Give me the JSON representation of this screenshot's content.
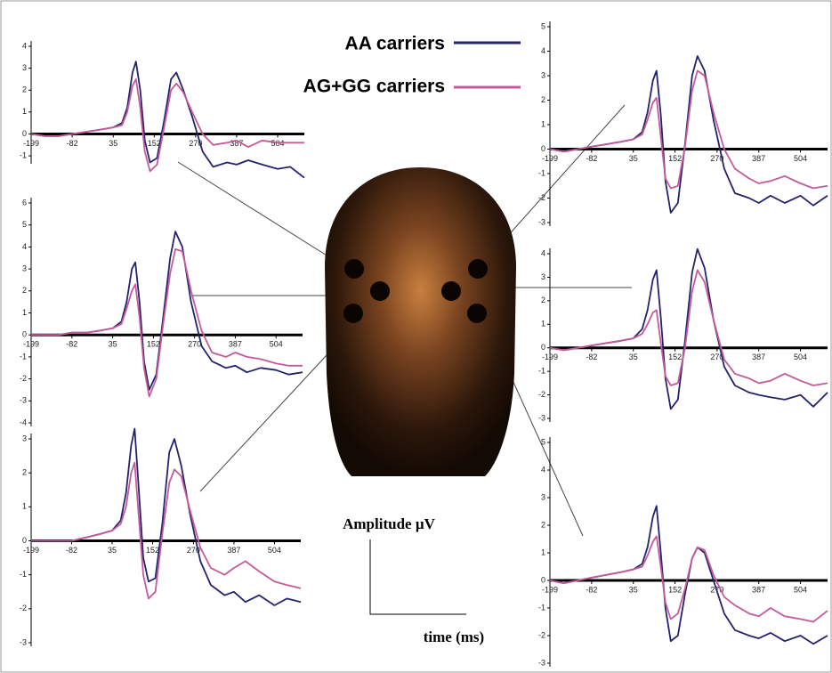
{
  "figure": {
    "amplitude_label": "Amplitude µV",
    "time_label": "time (ms)"
  },
  "chart_data": [
    {
      "type": "line",
      "xlim": [
        -199,
        580
      ],
      "ylim": [
        -1.2,
        4
      ],
      "xticks": [
        -199,
        -82,
        35,
        152,
        270,
        387,
        504
      ],
      "yticks": [
        -1,
        0,
        1,
        2,
        3,
        4
      ],
      "x": [
        -199,
        -160,
        -120,
        -82,
        -40,
        0,
        35,
        60,
        75,
        90,
        100,
        112,
        125,
        140,
        160,
        180,
        200,
        215,
        235,
        260,
        290,
        320,
        360,
        387,
        420,
        460,
        504,
        540,
        580
      ],
      "series": [
        {
          "name": "AA carriers",
          "color": "#23236e",
          "values": [
            0,
            -0.1,
            -0.1,
            0,
            0.1,
            0.2,
            0.3,
            0.5,
            1.2,
            2.8,
            3.3,
            2.0,
            -0.3,
            -1.3,
            -1.1,
            0.6,
            2.5,
            2.8,
            2.0,
            0.8,
            -0.8,
            -1.5,
            -1.3,
            -1.4,
            -1.2,
            -1.4,
            -1.6,
            -1.5,
            -2.0
          ]
        },
        {
          "name": "AG+GG carriers",
          "color": "#c45a9a",
          "values": [
            0,
            -0.1,
            -0.1,
            0,
            0.1,
            0.2,
            0.3,
            0.4,
            1.0,
            2.2,
            2.5,
            1.2,
            -0.8,
            -1.7,
            -1.4,
            0.3,
            2.0,
            2.3,
            1.9,
            1.0,
            0,
            -0.5,
            -0.4,
            -0.3,
            -0.6,
            -0.3,
            -0.4,
            -0.4,
            -0.4
          ]
        }
      ]
    },
    {
      "type": "line",
      "xlim": [
        -199,
        580
      ],
      "ylim": [
        -4,
        6
      ],
      "xticks": [
        -199,
        -82,
        35,
        152,
        270,
        387,
        504
      ],
      "yticks": [
        -4,
        -3,
        -2,
        -1,
        0,
        1,
        2,
        3,
        4,
        5,
        6
      ],
      "x": [
        -199,
        -160,
        -120,
        -82,
        -40,
        0,
        35,
        60,
        75,
        90,
        100,
        112,
        125,
        140,
        160,
        180,
        200,
        215,
        235,
        260,
        290,
        320,
        360,
        387,
        420,
        460,
        504,
        540,
        580
      ],
      "series": [
        {
          "name": "AA carriers",
          "color": "#23236e",
          "values": [
            0,
            0,
            0,
            0.1,
            0.1,
            0.2,
            0.3,
            0.6,
            1.5,
            3.0,
            3.3,
            1.5,
            -1.2,
            -2.5,
            -1.8,
            0.8,
            3.5,
            4.7,
            4.0,
            1.5,
            -0.5,
            -1.2,
            -1.5,
            -1.4,
            -1.7,
            -1.5,
            -1.6,
            -1.8,
            -1.7
          ]
        },
        {
          "name": "AG+GG carriers",
          "color": "#c45a9a",
          "values": [
            0,
            0,
            0,
            0.1,
            0.1,
            0.2,
            0.3,
            0.5,
            1.2,
            2.0,
            2.3,
            0.8,
            -1.5,
            -2.8,
            -2.0,
            0.5,
            2.8,
            3.9,
            3.8,
            2.0,
            0.2,
            -0.8,
            -1.0,
            -0.8,
            -1.0,
            -1.1,
            -1.3,
            -1.4,
            -1.4
          ]
        }
      ]
    },
    {
      "type": "line",
      "xlim": [
        -199,
        580
      ],
      "ylim": [
        -3,
        3
      ],
      "xticks": [
        -199,
        -82,
        35,
        152,
        270,
        387,
        504
      ],
      "yticks": [
        -3,
        -2,
        -1,
        0,
        1,
        2,
        3
      ],
      "x": [
        -199,
        -160,
        -120,
        -82,
        -40,
        0,
        35,
        60,
        75,
        90,
        100,
        112,
        125,
        140,
        160,
        180,
        200,
        215,
        235,
        260,
        290,
        320,
        360,
        387,
        420,
        460,
        504,
        540,
        580
      ],
      "series": [
        {
          "name": "AA carriers",
          "color": "#23236e",
          "values": [
            0,
            0,
            0,
            0,
            0.1,
            0.2,
            0.3,
            0.6,
            1.4,
            2.8,
            3.3,
            1.5,
            -0.5,
            -1.2,
            -1.1,
            0.5,
            2.6,
            3.0,
            2.2,
            0.8,
            -0.6,
            -1.3,
            -1.6,
            -1.5,
            -1.8,
            -1.6,
            -1.9,
            -1.7,
            -1.8
          ]
        },
        {
          "name": "AG+GG carriers",
          "color": "#c45a9a",
          "values": [
            0,
            0,
            0,
            0,
            0.1,
            0.2,
            0.3,
            0.5,
            1.0,
            2.0,
            2.3,
            0.7,
            -1.0,
            -1.7,
            -1.5,
            0.2,
            1.7,
            2.1,
            1.9,
            0.9,
            -0.2,
            -0.8,
            -1.0,
            -0.8,
            -0.6,
            -0.9,
            -1.2,
            -1.3,
            -1.4
          ]
        }
      ]
    },
    {
      "type": "line",
      "xlim": [
        -199,
        580
      ],
      "ylim": [
        -3,
        5
      ],
      "xticks": [
        -199,
        -82,
        35,
        152,
        270,
        387,
        504
      ],
      "yticks": [
        -3,
        -2,
        -1,
        0,
        1,
        2,
        3,
        4,
        5
      ],
      "x": [
        -199,
        -160,
        -120,
        -82,
        -40,
        0,
        35,
        60,
        75,
        90,
        100,
        112,
        125,
        140,
        160,
        180,
        200,
        215,
        235,
        260,
        290,
        320,
        360,
        387,
        420,
        460,
        504,
        540,
        580
      ],
      "series": [
        {
          "name": "AA carriers",
          "color": "#23236e",
          "values": [
            0,
            -0.1,
            0,
            0.1,
            0.2,
            0.3,
            0.4,
            0.7,
            1.5,
            2.8,
            3.2,
            1.4,
            -1.3,
            -2.6,
            -2.2,
            0.2,
            3.0,
            3.8,
            3.2,
            1.2,
            -0.8,
            -1.8,
            -2.0,
            -2.2,
            -1.9,
            -2.2,
            -1.9,
            -2.3,
            -1.9
          ]
        },
        {
          "name": "AG+GG carriers",
          "color": "#c45a9a",
          "values": [
            0,
            -0.1,
            0,
            0.1,
            0.2,
            0.3,
            0.4,
            0.6,
            1.2,
            1.9,
            2.1,
            0.5,
            -1.2,
            -1.6,
            -1.5,
            0.1,
            2.4,
            3.2,
            3.0,
            1.5,
            0,
            -0.8,
            -1.2,
            -1.4,
            -1.3,
            -1.1,
            -1.4,
            -1.6,
            -1.5
          ]
        }
      ]
    },
    {
      "type": "line",
      "xlim": [
        -199,
        580
      ],
      "ylim": [
        -3,
        4
      ],
      "xticks": [
        -199,
        -82,
        35,
        152,
        270,
        387,
        504
      ],
      "yticks": [
        -3,
        -2,
        -1,
        0,
        1,
        2,
        3,
        4
      ],
      "x": [
        -199,
        -160,
        -120,
        -82,
        -40,
        0,
        35,
        60,
        75,
        90,
        100,
        112,
        125,
        140,
        160,
        180,
        200,
        215,
        235,
        260,
        290,
        320,
        360,
        387,
        420,
        460,
        504,
        540,
        580
      ],
      "series": [
        {
          "name": "AA carriers",
          "color": "#23236e",
          "values": [
            0,
            -0.1,
            0,
            0.1,
            0.2,
            0.3,
            0.4,
            0.8,
            1.6,
            2.9,
            3.3,
            1.3,
            -1.3,
            -2.6,
            -2.2,
            0.3,
            3.2,
            4.2,
            3.4,
            1.2,
            -0.8,
            -1.6,
            -1.9,
            -2.0,
            -2.1,
            -2.2,
            -2.0,
            -2.5,
            -1.9
          ]
        },
        {
          "name": "AG+GG carriers",
          "color": "#c45a9a",
          "values": [
            0,
            -0.1,
            0,
            0.1,
            0.2,
            0.3,
            0.4,
            0.6,
            1.0,
            1.5,
            1.6,
            0.2,
            -1.2,
            -1.6,
            -1.5,
            0,
            2.4,
            3.3,
            2.8,
            1.2,
            -0.5,
            -1.1,
            -1.3,
            -1.5,
            -1.4,
            -1.1,
            -1.4,
            -1.6,
            -1.5
          ]
        }
      ]
    },
    {
      "type": "line",
      "xlim": [
        -199,
        580
      ],
      "ylim": [
        -3,
        5
      ],
      "xticks": [
        -199,
        -82,
        35,
        152,
        270,
        387,
        504
      ],
      "yticks": [
        -3,
        -2,
        -1,
        0,
        1,
        2,
        3,
        4,
        5
      ],
      "x": [
        -199,
        -160,
        -120,
        -82,
        -40,
        0,
        35,
        60,
        75,
        90,
        100,
        112,
        125,
        140,
        160,
        180,
        200,
        215,
        235,
        260,
        290,
        320,
        360,
        387,
        420,
        460,
        504,
        540,
        580
      ],
      "series": [
        {
          "name": "AA carriers",
          "color": "#23236e",
          "values": [
            0,
            -0.1,
            0,
            0.1,
            0.2,
            0.3,
            0.4,
            0.6,
            1.2,
            2.3,
            2.7,
            1.0,
            -1.0,
            -2.2,
            -2.0,
            -0.5,
            0.8,
            1.2,
            1.0,
            0,
            -1.2,
            -1.8,
            -2.0,
            -2.1,
            -1.9,
            -2.2,
            -2.0,
            -2.3,
            -2.0
          ]
        },
        {
          "name": "AG+GG carriers",
          "color": "#c45a9a",
          "values": [
            0,
            -0.1,
            0,
            0.1,
            0.2,
            0.3,
            0.4,
            0.5,
            0.9,
            1.4,
            1.6,
            0.5,
            -0.8,
            -1.4,
            -1.2,
            -0.3,
            0.8,
            1.2,
            1.1,
            0.2,
            -0.6,
            -0.9,
            -1.2,
            -1.3,
            -1.0,
            -1.3,
            -1.4,
            -1.5,
            -1.1
          ]
        }
      ]
    }
  ]
}
